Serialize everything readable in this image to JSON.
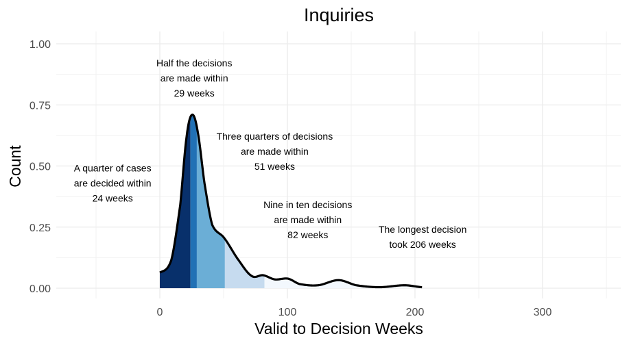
{
  "chart_data": {
    "type": "area",
    "title": "Inquiries",
    "xlabel": "Valid to Decision Weeks",
    "ylabel": "Count",
    "xlim": [
      -81,
      361
    ],
    "ylim": [
      0,
      1.0
    ],
    "x_ticks": [
      0,
      100,
      200,
      300
    ],
    "x_tick_labels": [
      "0",
      "100",
      "200",
      "300"
    ],
    "y_ticks": [
      0,
      0.25,
      0.5,
      0.75,
      1.0
    ],
    "y_tick_labels": [
      "0.00",
      "0.25",
      "0.50",
      "0.75",
      "1.00"
    ],
    "grid": true,
    "legend": "none",
    "curve": {
      "x": [
        0,
        9,
        16,
        21,
        25.3,
        29.7,
        35,
        41,
        50.5,
        61,
        72,
        81,
        90,
        100.5,
        109.5,
        124,
        140,
        154,
        172,
        192,
        205.5
      ],
      "y": [
        0.064,
        0.115,
        0.34,
        0.62,
        0.71,
        0.64,
        0.43,
        0.26,
        0.205,
        0.12,
        0.05,
        0.053,
        0.036,
        0.039,
        0.017,
        0.012,
        0.033,
        0.012,
        0.004,
        0.012,
        0.004
      ]
    },
    "bands": [
      {
        "from": 0,
        "to": 24,
        "color": "#08306b"
      },
      {
        "from": 24,
        "to": 29,
        "color": "#2171b5"
      },
      {
        "from": 29,
        "to": 51,
        "color": "#6baed6"
      },
      {
        "from": 51,
        "to": 82,
        "color": "#c6dbef"
      },
      {
        "from": 82,
        "to": 206,
        "color": "#f3f8fd"
      }
    ],
    "annotations": [
      {
        "x": 27,
        "y": 0.86,
        "lines": [
          "Half the decisions",
          "are made within",
          "29 weeks"
        ]
      },
      {
        "x": 90,
        "y": 0.56,
        "lines": [
          "Three quarters of decisions",
          "are made within",
          "51 weeks"
        ]
      },
      {
        "x": -37,
        "y": 0.43,
        "lines": [
          "A quarter of cases",
          "are decided within",
          "24 weeks"
        ]
      },
      {
        "x": 116,
        "y": 0.28,
        "lines": [
          "Nine in ten decisions",
          "are made within",
          "82 weeks"
        ]
      },
      {
        "x": 206,
        "y": 0.21,
        "lines": [
          "The longest decision",
          "took 206 weeks"
        ]
      }
    ]
  }
}
